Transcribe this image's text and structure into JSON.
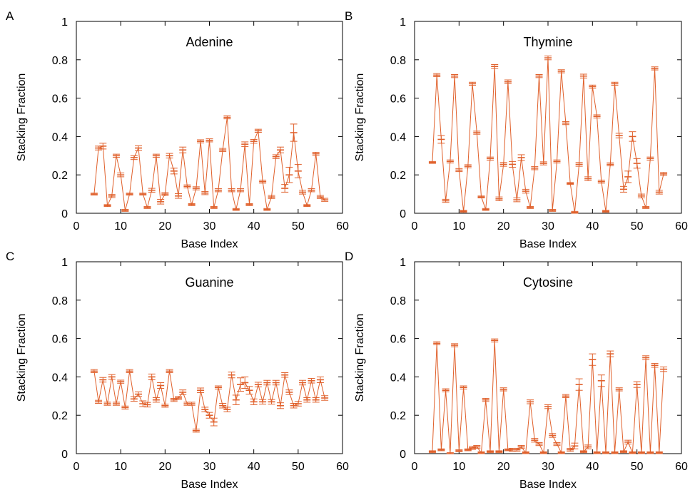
{
  "colors": {
    "series": "#e0602b",
    "axis": "#000000"
  },
  "chart_data": [
    {
      "type": "line",
      "panel_letter": "A",
      "title": "Adenine",
      "xlabel": "Base Index",
      "ylabel": "Stacking Fraction",
      "xlim": [
        0,
        60
      ],
      "ylim": [
        0,
        1
      ],
      "xticks": [
        0,
        10,
        20,
        30,
        40,
        50,
        60
      ],
      "yticks": [
        0,
        0.2,
        0.4,
        0.6,
        0.8,
        1
      ],
      "ytick_labels": [
        "0",
        "0.2",
        "0.4",
        "0.6",
        "0.8",
        "1"
      ],
      "grid": false,
      "error_bars": true,
      "x": [
        4,
        5,
        6,
        7,
        8,
        9,
        10,
        11,
        12,
        13,
        14,
        15,
        16,
        17,
        18,
        19,
        20,
        21,
        22,
        23,
        24,
        25,
        26,
        27,
        28,
        29,
        30,
        31,
        32,
        33,
        34,
        35,
        36,
        37,
        38,
        39,
        40,
        41,
        42,
        43,
        44,
        45,
        46,
        47,
        48,
        49,
        50,
        51,
        52,
        53,
        54,
        55,
        56
      ],
      "values": [
        0.1,
        0.34,
        0.35,
        0.04,
        0.09,
        0.3,
        0.2,
        0.015,
        0.1,
        0.29,
        0.34,
        0.1,
        0.03,
        0.12,
        0.3,
        0.06,
        0.1,
        0.3,
        0.22,
        0.09,
        0.33,
        0.14,
        0.045,
        0.13,
        0.375,
        0.105,
        0.38,
        0.03,
        0.12,
        0.33,
        0.5,
        0.12,
        0.02,
        0.12,
        0.36,
        0.045,
        0.375,
        0.43,
        0.165,
        0.02,
        0.085,
        0.295,
        0.33,
        0.13,
        0.2,
        0.42,
        0.22,
        0.11,
        0.04,
        0.12,
        0.31,
        0.085,
        0.07
      ],
      "errors": [
        0.005,
        0.01,
        0.015,
        0.005,
        0.008,
        0.008,
        0.01,
        0.005,
        0.005,
        0.01,
        0.012,
        0.005,
        0.005,
        0.01,
        0.008,
        0.012,
        0.008,
        0.012,
        0.015,
        0.012,
        0.015,
        0.008,
        0.005,
        0.008,
        0.008,
        0.008,
        0.008,
        0.005,
        0.008,
        0.008,
        0.008,
        0.008,
        0.005,
        0.008,
        0.012,
        0.005,
        0.01,
        0.008,
        0.008,
        0.005,
        0.008,
        0.01,
        0.015,
        0.02,
        0.04,
        0.045,
        0.035,
        0.01,
        0.005,
        0.008,
        0.008,
        0.008,
        0.008
      ]
    },
    {
      "type": "line",
      "panel_letter": "B",
      "title": "Thymine",
      "xlabel": "Base Index",
      "ylabel": "Stacking Fraction",
      "xlim": [
        0,
        60
      ],
      "ylim": [
        0,
        1
      ],
      "xticks": [
        0,
        10,
        20,
        30,
        40,
        50,
        60
      ],
      "yticks": [
        0,
        0.2,
        0.4,
        0.6,
        0.8,
        1
      ],
      "ytick_labels": [
        "0",
        "0.2",
        "0.4",
        "0.6",
        "0.8",
        "1"
      ],
      "grid": false,
      "error_bars": true,
      "x": [
        4,
        5,
        6,
        7,
        8,
        9,
        10,
        11,
        12,
        13,
        14,
        15,
        16,
        17,
        18,
        19,
        20,
        21,
        22,
        23,
        24,
        25,
        26,
        27,
        28,
        29,
        30,
        31,
        32,
        33,
        34,
        35,
        36,
        37,
        38,
        39,
        40,
        41,
        42,
        43,
        44,
        45,
        46,
        47,
        48,
        49,
        50,
        51,
        52,
        53,
        54,
        55,
        56
      ],
      "values": [
        0.265,
        0.72,
        0.385,
        0.065,
        0.27,
        0.715,
        0.225,
        0.01,
        0.245,
        0.675,
        0.42,
        0.085,
        0.02,
        0.285,
        0.765,
        0.075,
        0.255,
        0.685,
        0.255,
        0.07,
        0.29,
        0.115,
        0.03,
        0.235,
        0.715,
        0.26,
        0.81,
        0.015,
        0.27,
        0.74,
        0.47,
        0.155,
        0.005,
        0.255,
        0.715,
        0.18,
        0.66,
        0.505,
        0.165,
        0.01,
        0.255,
        0.675,
        0.405,
        0.125,
        0.19,
        0.4,
        0.26,
        0.09,
        0.03,
        0.285,
        0.755,
        0.11,
        0.205
      ],
      "errors": [
        0.005,
        0.008,
        0.02,
        0.008,
        0.008,
        0.008,
        0.008,
        0.005,
        0.008,
        0.008,
        0.008,
        0.005,
        0.005,
        0.008,
        0.01,
        0.01,
        0.01,
        0.01,
        0.015,
        0.01,
        0.015,
        0.01,
        0.005,
        0.008,
        0.008,
        0.008,
        0.01,
        0.005,
        0.008,
        0.008,
        0.008,
        0.005,
        0.005,
        0.01,
        0.01,
        0.01,
        0.008,
        0.008,
        0.008,
        0.005,
        0.008,
        0.008,
        0.012,
        0.015,
        0.03,
        0.025,
        0.025,
        0.01,
        0.005,
        0.008,
        0.008,
        0.01,
        0.008
      ]
    },
    {
      "type": "line",
      "panel_letter": "C",
      "title": "Guanine",
      "xlabel": "Base Index",
      "ylabel": "Stacking Fraction",
      "xlim": [
        0,
        60
      ],
      "ylim": [
        0,
        1
      ],
      "xticks": [
        0,
        10,
        20,
        30,
        40,
        50,
        60
      ],
      "yticks": [
        0,
        0.2,
        0.4,
        0.6,
        0.8,
        1
      ],
      "ytick_labels": [
        "0",
        "0.2",
        "0.4",
        "0.6",
        "0.8",
        "1"
      ],
      "grid": false,
      "error_bars": true,
      "x": [
        4,
        5,
        6,
        7,
        8,
        9,
        10,
        11,
        12,
        13,
        14,
        15,
        16,
        17,
        18,
        19,
        20,
        21,
        22,
        23,
        24,
        25,
        26,
        27,
        28,
        29,
        30,
        31,
        32,
        33,
        34,
        35,
        36,
        37,
        38,
        39,
        40,
        41,
        42,
        43,
        44,
        45,
        46,
        47,
        48,
        49,
        50,
        51,
        52,
        53,
        54,
        55,
        56
      ],
      "values": [
        0.43,
        0.27,
        0.385,
        0.26,
        0.4,
        0.26,
        0.375,
        0.24,
        0.43,
        0.285,
        0.31,
        0.26,
        0.255,
        0.4,
        0.28,
        0.355,
        0.25,
        0.43,
        0.28,
        0.29,
        0.32,
        0.26,
        0.26,
        0.12,
        0.33,
        0.23,
        0.2,
        0.165,
        0.345,
        0.25,
        0.23,
        0.41,
        0.28,
        0.36,
        0.37,
        0.33,
        0.27,
        0.36,
        0.27,
        0.37,
        0.27,
        0.37,
        0.25,
        0.41,
        0.32,
        0.25,
        0.26,
        0.37,
        0.28,
        0.38,
        0.28,
        0.385,
        0.29
      ],
      "errors": [
        0.008,
        0.008,
        0.012,
        0.008,
        0.012,
        0.008,
        0.008,
        0.008,
        0.008,
        0.012,
        0.012,
        0.015,
        0.012,
        0.015,
        0.012,
        0.015,
        0.008,
        0.008,
        0.008,
        0.008,
        0.012,
        0.008,
        0.008,
        0.008,
        0.012,
        0.012,
        0.015,
        0.02,
        0.008,
        0.012,
        0.012,
        0.015,
        0.025,
        0.035,
        0.03,
        0.02,
        0.015,
        0.012,
        0.012,
        0.012,
        0.012,
        0.012,
        0.015,
        0.012,
        0.012,
        0.012,
        0.012,
        0.012,
        0.012,
        0.012,
        0.012,
        0.015,
        0.012
      ]
    },
    {
      "type": "line",
      "panel_letter": "D",
      "title": "Cytosine",
      "xlabel": "Base Index",
      "ylabel": "Stacking Fraction",
      "xlim": [
        0,
        60
      ],
      "ylim": [
        0,
        1
      ],
      "xticks": [
        0,
        10,
        20,
        30,
        40,
        50,
        60
      ],
      "yticks": [
        0,
        0.2,
        0.4,
        0.6,
        0.8,
        1
      ],
      "ytick_labels": [
        "0",
        "0.2",
        "0.4",
        "0.6",
        "0.8",
        "1"
      ],
      "grid": false,
      "error_bars": true,
      "x": [
        4,
        5,
        6,
        7,
        8,
        9,
        10,
        11,
        12,
        13,
        14,
        15,
        16,
        17,
        18,
        19,
        20,
        21,
        22,
        23,
        24,
        25,
        26,
        27,
        28,
        29,
        30,
        31,
        32,
        33,
        34,
        35,
        36,
        37,
        38,
        39,
        40,
        41,
        42,
        43,
        44,
        45,
        46,
        47,
        48,
        49,
        50,
        51,
        52,
        53,
        54,
        55,
        56
      ],
      "values": [
        0.01,
        0.575,
        0.02,
        0.33,
        0.0,
        0.565,
        0.015,
        0.345,
        0.02,
        0.03,
        0.035,
        0.005,
        0.28,
        0.01,
        0.59,
        0.01,
        0.335,
        0.02,
        0.02,
        0.02,
        0.035,
        0.005,
        0.27,
        0.07,
        0.05,
        0.005,
        0.245,
        0.095,
        0.05,
        0.005,
        0.3,
        0.02,
        0.04,
        0.36,
        0.01,
        0.035,
        0.49,
        0.005,
        0.38,
        0.005,
        0.52,
        0.005,
        0.335,
        0.01,
        0.06,
        0.005,
        0.36,
        0.005,
        0.5,
        0.005,
        0.46,
        0.005,
        0.44
      ],
      "errors": [
        0.005,
        0.008,
        0.005,
        0.008,
        0.005,
        0.008,
        0.005,
        0.008,
        0.005,
        0.008,
        0.008,
        0.005,
        0.008,
        0.005,
        0.008,
        0.005,
        0.008,
        0.005,
        0.008,
        0.008,
        0.008,
        0.005,
        0.01,
        0.01,
        0.008,
        0.005,
        0.01,
        0.01,
        0.008,
        0.005,
        0.008,
        0.008,
        0.015,
        0.03,
        0.005,
        0.01,
        0.03,
        0.005,
        0.03,
        0.005,
        0.015,
        0.005,
        0.008,
        0.005,
        0.01,
        0.005,
        0.015,
        0.005,
        0.01,
        0.005,
        0.01,
        0.005,
        0.012
      ]
    }
  ]
}
